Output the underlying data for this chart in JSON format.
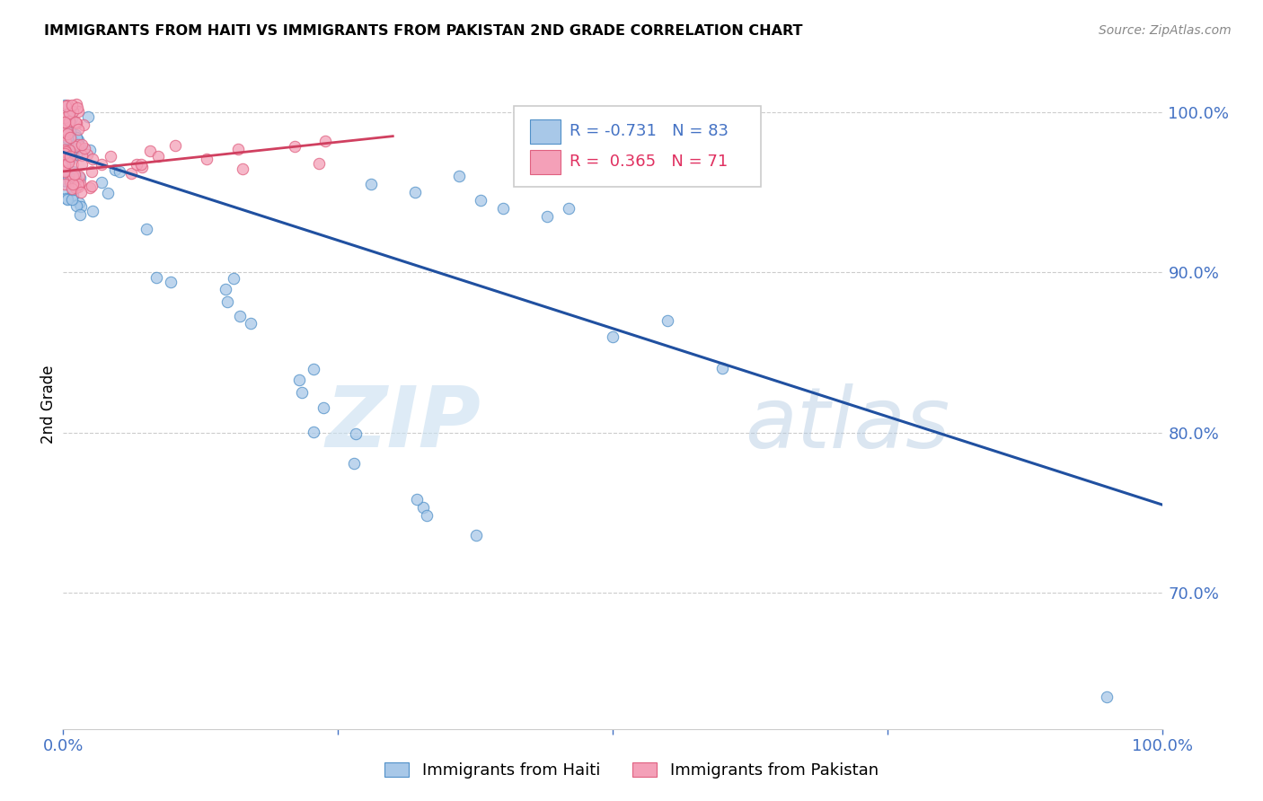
{
  "title": "IMMIGRANTS FROM HAITI VS IMMIGRANTS FROM PAKISTAN 2ND GRADE CORRELATION CHART",
  "source": "Source: ZipAtlas.com",
  "ylabel": "2nd Grade",
  "watermark_zip": "ZIP",
  "watermark_atlas": "atlas",
  "haiti_color": "#a8c8e8",
  "pakistan_color": "#f4a0b8",
  "haiti_edge": "#5090c8",
  "pakistan_edge": "#e06080",
  "haiti_line_color": "#2050a0",
  "pakistan_line_color": "#d04060",
  "haiti_R": -0.731,
  "haiti_N": 83,
  "pakistan_R": 0.365,
  "pakistan_N": 71,
  "xlim": [
    0.0,
    1.0
  ],
  "ylim": [
    0.615,
    1.02
  ],
  "yticks": [
    0.7,
    0.8,
    0.9,
    1.0
  ],
  "ytick_labels": [
    "70.0%",
    "80.0%",
    "90.0%",
    "100.0%"
  ],
  "background_color": "#ffffff",
  "grid_color": "#cccccc",
  "axis_color": "#4472c4",
  "title_color": "#000000",
  "right_label_color": "#4472c4",
  "haiti_line_x0": 0.0,
  "haiti_line_x1": 1.0,
  "haiti_line_y0": 0.975,
  "haiti_line_y1": 0.755,
  "pak_line_x0": 0.0,
  "pak_line_x1": 0.3,
  "pak_line_y0": 0.963,
  "pak_line_y1": 0.985
}
